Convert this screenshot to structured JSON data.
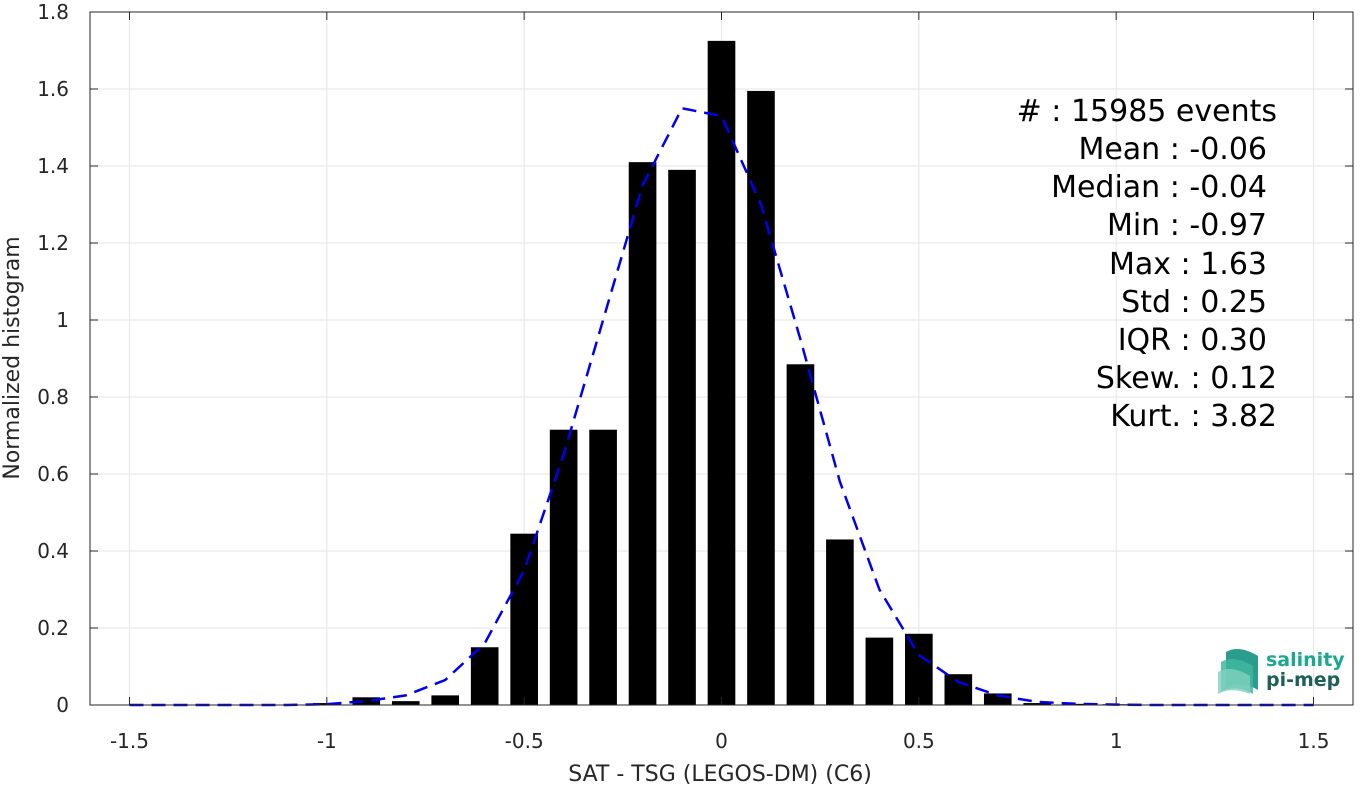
{
  "chart_data": {
    "type": "bar",
    "xlabel": "SAT - TSG (LEGOS-DM) (C6)",
    "ylabel": "Normalized histogram",
    "xlim": [
      -1.6,
      1.6
    ],
    "ylim": [
      0,
      1.8
    ],
    "xticks": [
      -1.5,
      -1,
      -0.5,
      0,
      0.5,
      1,
      1.5
    ],
    "xtick_labels": [
      "-1.5",
      "-1",
      "-0.5",
      "0",
      "0.5",
      "1",
      "1.5"
    ],
    "yticks": [
      0,
      0.2,
      0.4,
      0.6,
      0.8,
      1,
      1.2,
      1.4,
      1.6,
      1.8
    ],
    "ytick_labels": [
      "0",
      "0.2",
      "0.4",
      "0.6",
      "0.8",
      "1",
      "1.2",
      "1.4",
      "1.6",
      "1.8"
    ],
    "grid": true,
    "bar_width": 0.07,
    "bar_color": "#000000",
    "bars": [
      {
        "x": -1.0,
        "y": 0.005
      },
      {
        "x": -0.9,
        "y": 0.02
      },
      {
        "x": -0.8,
        "y": 0.01
      },
      {
        "x": -0.7,
        "y": 0.025
      },
      {
        "x": -0.6,
        "y": 0.15
      },
      {
        "x": -0.5,
        "y": 0.445
      },
      {
        "x": -0.4,
        "y": 0.715
      },
      {
        "x": -0.3,
        "y": 0.715
      },
      {
        "x": -0.2,
        "y": 1.41
      },
      {
        "x": -0.1,
        "y": 1.39
      },
      {
        "x": 0.0,
        "y": 1.725
      },
      {
        "x": 0.1,
        "y": 1.595
      },
      {
        "x": 0.2,
        "y": 0.885
      },
      {
        "x": 0.3,
        "y": 0.43
      },
      {
        "x": 0.4,
        "y": 0.175
      },
      {
        "x": 0.5,
        "y": 0.185
      },
      {
        "x": 0.6,
        "y": 0.08
      },
      {
        "x": 0.7,
        "y": 0.03
      },
      {
        "x": 0.8,
        "y": 0.005
      },
      {
        "x": 0.9,
        "y": 0.003
      },
      {
        "x": 1.0,
        "y": 0.002
      },
      {
        "x": 1.1,
        "y": 0.001
      },
      {
        "x": 1.2,
        "y": 0.001
      },
      {
        "x": 1.3,
        "y": 0.001
      },
      {
        "x": 1.4,
        "y": 0.001
      },
      {
        "x": 1.5,
        "y": 0.001
      }
    ],
    "fit_curve": {
      "style": "dashed",
      "color": "#0000ee",
      "x": [
        -1.5,
        -1.4,
        -1.3,
        -1.2,
        -1.1,
        -1.0,
        -0.9,
        -0.8,
        -0.7,
        -0.6,
        -0.5,
        -0.4,
        -0.3,
        -0.2,
        -0.1,
        0.0,
        0.1,
        0.2,
        0.3,
        0.4,
        0.5,
        0.6,
        0.7,
        0.8,
        0.9,
        1.0,
        1.1,
        1.2,
        1.3,
        1.4,
        1.5
      ],
      "y": [
        0.0,
        0.0,
        0.0,
        0.0,
        0.0,
        0.002,
        0.01,
        0.025,
        0.065,
        0.16,
        0.35,
        0.65,
        1.0,
        1.35,
        1.55,
        1.53,
        1.3,
        0.95,
        0.58,
        0.3,
        0.13,
        0.06,
        0.025,
        0.008,
        0.003,
        0.001,
        0.0,
        0.0,
        0.0,
        0.0,
        0.0
      ]
    }
  },
  "stats": {
    "events": "#  : 15985 events",
    "mean": "Mean : -0.06",
    "median": "Median : -0.04",
    "min": "Min : -0.97",
    "max": "Max : 1.63",
    "std": "Std : 0.25",
    "iqr": "IQR : 0.30",
    "skew": "Skew. : 0.12",
    "kurt": "Kurt. : 3.82"
  },
  "logo": {
    "line1": "salinity",
    "line2": "pi-mep",
    "color1": "#1aa88f",
    "color2": "#1f5f5a"
  }
}
